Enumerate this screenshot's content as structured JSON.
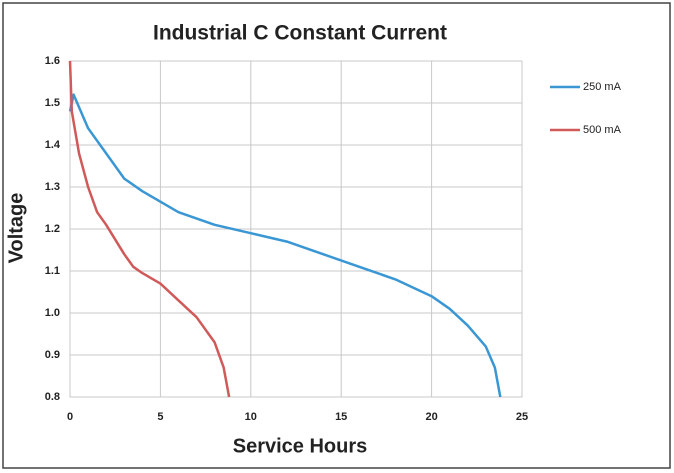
{
  "chart_data": {
    "type": "line",
    "title": "Industrial C Constant Current",
    "xlabel": "Service Hours",
    "ylabel": "Voltage",
    "xlim": [
      0,
      25
    ],
    "xticks": [
      0,
      5,
      10,
      15,
      20,
      25
    ],
    "ylim": [
      0.8,
      1.6
    ],
    "yticks": [
      0.8,
      0.9,
      {
        "value": 1,
        "label": "1.0"
      },
      1.1,
      1.2,
      1.3,
      1.4,
      1.5,
      1.6
    ],
    "grid": true,
    "legend": "right",
    "series": [
      {
        "name": "250 mA",
        "color": "#3a97d4",
        "x": [
          0,
          0.2,
          0.5,
          1,
          2,
          3,
          4,
          5,
          6,
          8,
          10,
          12,
          14,
          16,
          18,
          20,
          21,
          22,
          23,
          23.5,
          23.8
        ],
        "values": [
          1.48,
          1.52,
          1.49,
          1.44,
          1.38,
          1.32,
          1.29,
          1.265,
          1.24,
          1.21,
          1.19,
          1.17,
          1.14,
          1.11,
          1.08,
          1.04,
          1.01,
          0.97,
          0.92,
          0.87,
          0.8
        ]
      },
      {
        "name": "500 mA",
        "color": "#d05a5a",
        "x": [
          0,
          0.1,
          0.5,
          1,
          1.5,
          2,
          3,
          3.5,
          4,
          5,
          6,
          7,
          8,
          8.5,
          8.8
        ],
        "values": [
          1.6,
          1.48,
          1.38,
          1.3,
          1.24,
          1.21,
          1.14,
          1.11,
          1.095,
          1.07,
          1.03,
          0.99,
          0.93,
          0.87,
          0.8
        ]
      }
    ]
  }
}
